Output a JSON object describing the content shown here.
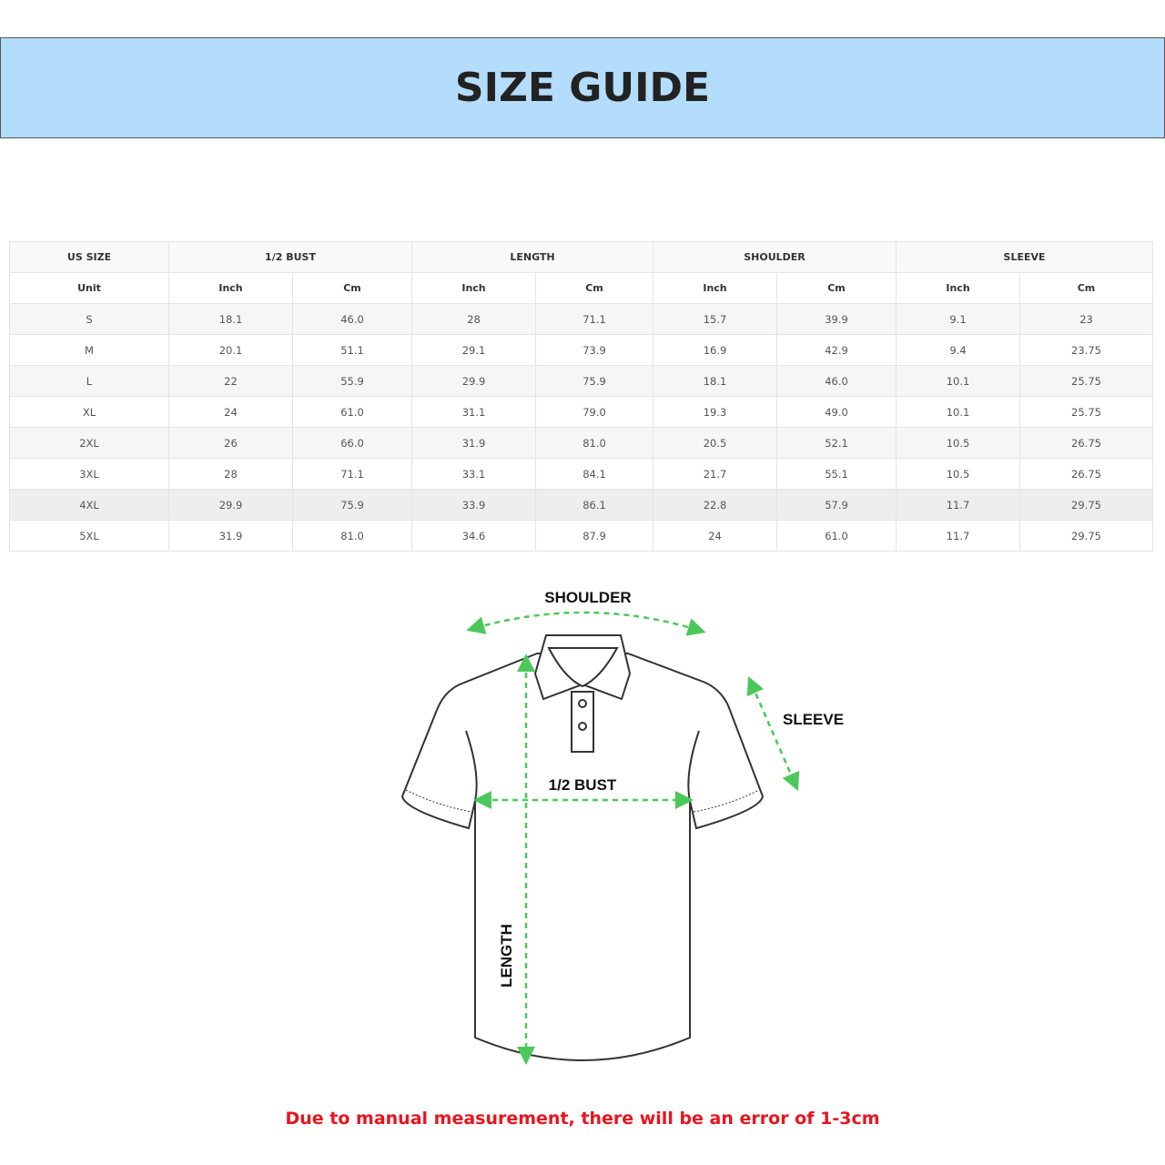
{
  "title": "SIZE GUIDE",
  "table": {
    "groups": [
      "US SIZE",
      "1/2 BUST",
      "LENGTH",
      "SHOULDER",
      "SLEEVE"
    ],
    "units": [
      "Unit",
      "Inch",
      "Cm",
      "Inch",
      "Cm",
      "Inch",
      "Cm",
      "Inch",
      "Cm"
    ],
    "rows": [
      [
        "S",
        "18.1",
        "46.0",
        "28",
        "71.1",
        "15.7",
        "39.9",
        "9.1",
        "23"
      ],
      [
        "M",
        "20.1",
        "51.1",
        "29.1",
        "73.9",
        "16.9",
        "42.9",
        "9.4",
        "23.75"
      ],
      [
        "L",
        "22",
        "55.9",
        "29.9",
        "75.9",
        "18.1",
        "46.0",
        "10.1",
        "25.75"
      ],
      [
        "XL",
        "24",
        "61.0",
        "31.1",
        "79.0",
        "19.3",
        "49.0",
        "10.1",
        "25.75"
      ],
      [
        "2XL",
        "26",
        "66.0",
        "31.9",
        "81.0",
        "20.5",
        "52.1",
        "10.5",
        "26.75"
      ],
      [
        "3XL",
        "28",
        "71.1",
        "33.1",
        "84.1",
        "21.7",
        "55.1",
        "10.5",
        "26.75"
      ],
      [
        "4XL",
        "29.9",
        "75.9",
        "33.9",
        "86.1",
        "22.8",
        "57.9",
        "11.7",
        "29.75"
      ],
      [
        "5XL",
        "31.9",
        "81.0",
        "34.6",
        "87.9",
        "24",
        "61.0",
        "11.7",
        "29.75"
      ]
    ]
  },
  "diagram": {
    "shoulder": "SHOULDER",
    "sleeve": "SLEEVE",
    "bust": "1/2 BUST",
    "length": "LENGTH",
    "arrow_color": "#4cc85a"
  },
  "note": "Due to manual measurement, there will be an error of 1-3cm"
}
